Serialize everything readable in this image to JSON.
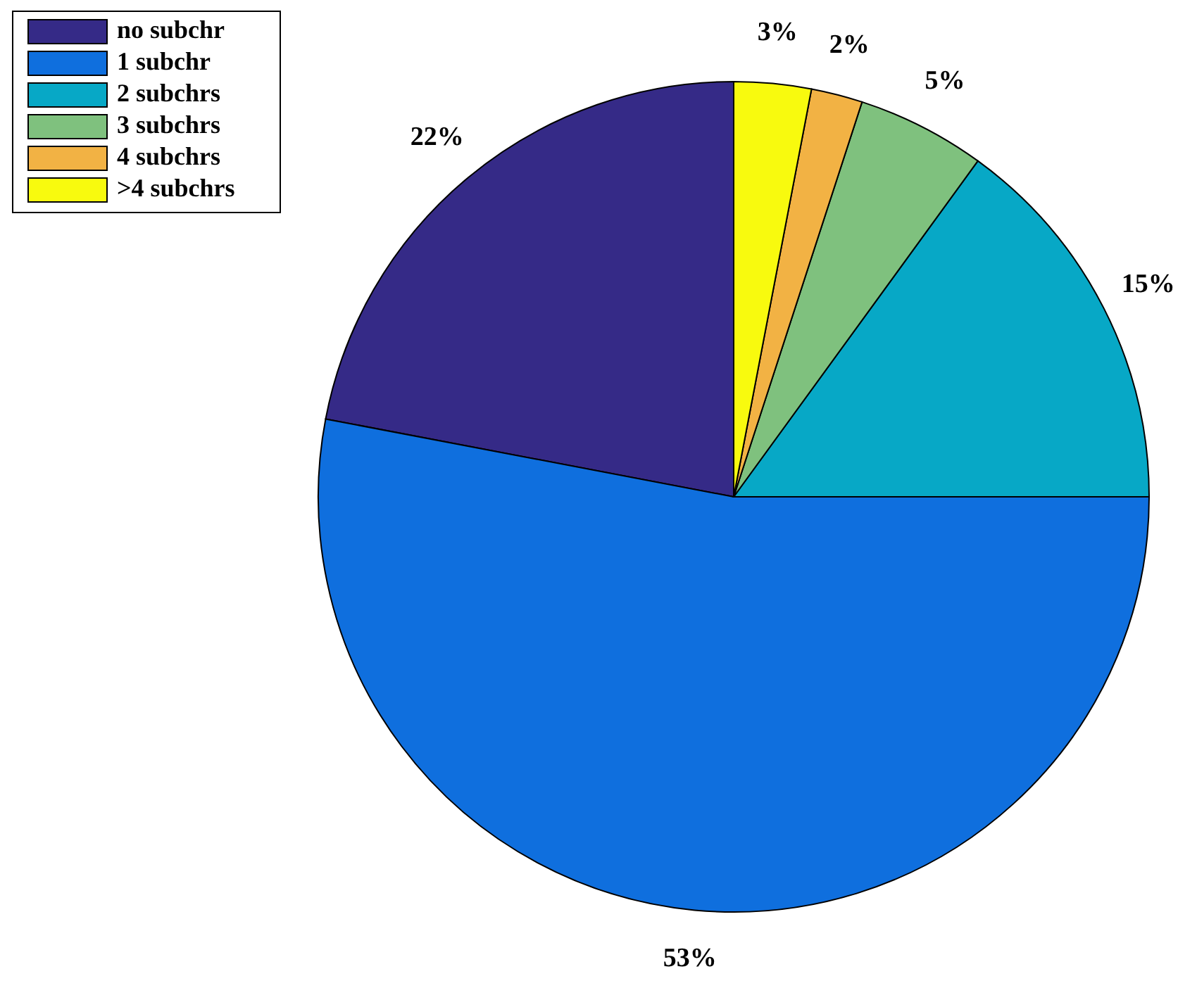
{
  "chart_data": {
    "type": "pie",
    "categories": [
      "no subchr",
      "1 subchr",
      "2 subchrs",
      "3 subchrs",
      "4 subchrs",
      ">4 subchrs"
    ],
    "values": [
      22,
      53,
      15,
      5,
      2,
      3
    ],
    "colors": [
      "#352a87",
      "#0f6fde",
      "#07a8c6",
      "#7fc17e",
      "#f2b244",
      "#f8fa0e"
    ],
    "value_labels": [
      "22%",
      "53%",
      "15%",
      "5%",
      "2%",
      "3%"
    ],
    "legend": "top left"
  }
}
